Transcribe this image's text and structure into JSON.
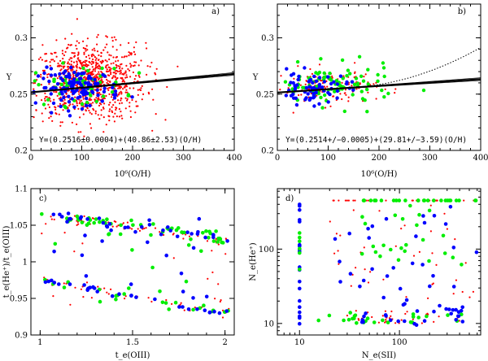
{
  "figure": {
    "panel_labels": [
      "a)",
      "b)",
      "c)",
      "d)"
    ]
  },
  "colors": {
    "red": "#ff0000",
    "green": "#00ee00",
    "blue": "#0000ff",
    "black": "#000000"
  },
  "chart_data": [
    {
      "type": "scatter",
      "panel": "a)",
      "xlabel": "10⁶(O/H)",
      "ylabel": "Y",
      "xlim": [
        0,
        400
      ],
      "ylim": [
        0.2,
        0.33
      ],
      "xticks": [
        "0",
        "100",
        "200",
        "300",
        "400"
      ],
      "yticks": [
        "0.2",
        "0.25",
        "0.3"
      ],
      "annotation": "Y=(0.2516±0.0004)+(40.86±2.53)(O/H)",
      "fit": {
        "intercept": 0.2516,
        "slope": 40.86
      },
      "series": [
        {
          "color": "red",
          "n": 900,
          "x_center": 115,
          "x_spread": 55,
          "y_center": 0.261,
          "y_spread": 0.017
        },
        {
          "color": "green",
          "n": 55,
          "x_center": 95,
          "x_spread": 45,
          "y_center": 0.258,
          "y_spread": 0.009
        },
        {
          "color": "blue",
          "n": 120,
          "x_center": 95,
          "x_spread": 40,
          "y_center": 0.256,
          "y_spread": 0.008
        }
      ]
    },
    {
      "type": "scatter",
      "panel": "b)",
      "xlabel": "10⁶(O/H)",
      "ylabel": "Y",
      "xlim": [
        0,
        400
      ],
      "ylim": [
        0.2,
        0.33
      ],
      "xticks": [
        "0",
        "100",
        "200",
        "300",
        "400"
      ],
      "yticks": [
        "0.2",
        "0.25",
        "0.3"
      ],
      "annotation": "Y=(0.2514+/−0.0005)+(29.81+/−3.59)(O/H)",
      "fit": {
        "intercept": 0.2514,
        "slope": 29.81
      },
      "series": [
        {
          "color": "red",
          "n": 140,
          "x_center": 95,
          "x_spread": 50,
          "y_center": 0.257,
          "y_spread": 0.008
        },
        {
          "color": "green",
          "n": 90,
          "x_center": 110,
          "x_spread": 60,
          "y_center": 0.257,
          "y_spread": 0.009
        },
        {
          "color": "blue",
          "n": 70,
          "x_center": 70,
          "x_spread": 35,
          "y_center": 0.255,
          "y_spread": 0.007
        }
      ]
    },
    {
      "type": "scatter",
      "panel": "c)",
      "xlabel": "t_e(OIII)",
      "ylabel": "t_e(He⁺)/t_e(OIII)",
      "xlim": [
        0.95,
        2.05
      ],
      "ylim": [
        0.9,
        1.1
      ],
      "xticks": [
        "1",
        "1.5",
        "2"
      ],
      "yticks": [
        "0.9",
        "0.95",
        "1",
        "1.05",
        "1.1"
      ],
      "series": [
        {
          "color": "red",
          "n": 120
        },
        {
          "color": "green",
          "n": 80
        },
        {
          "color": "blue",
          "n": 80
        }
      ]
    },
    {
      "type": "scatter",
      "panel": "d)",
      "xlabel": "N_e(SII)",
      "ylabel": "N_e(He⁺)",
      "log_x": true,
      "log_y": true,
      "xlim": [
        6,
        650
      ],
      "ylim": [
        7,
        650
      ],
      "xticks": [
        "10",
        "100"
      ],
      "yticks": [
        "10",
        "100"
      ],
      "series": [
        {
          "color": "red",
          "n": 110
        },
        {
          "color": "green",
          "n": 80
        },
        {
          "color": "blue",
          "n": 80
        }
      ]
    }
  ]
}
